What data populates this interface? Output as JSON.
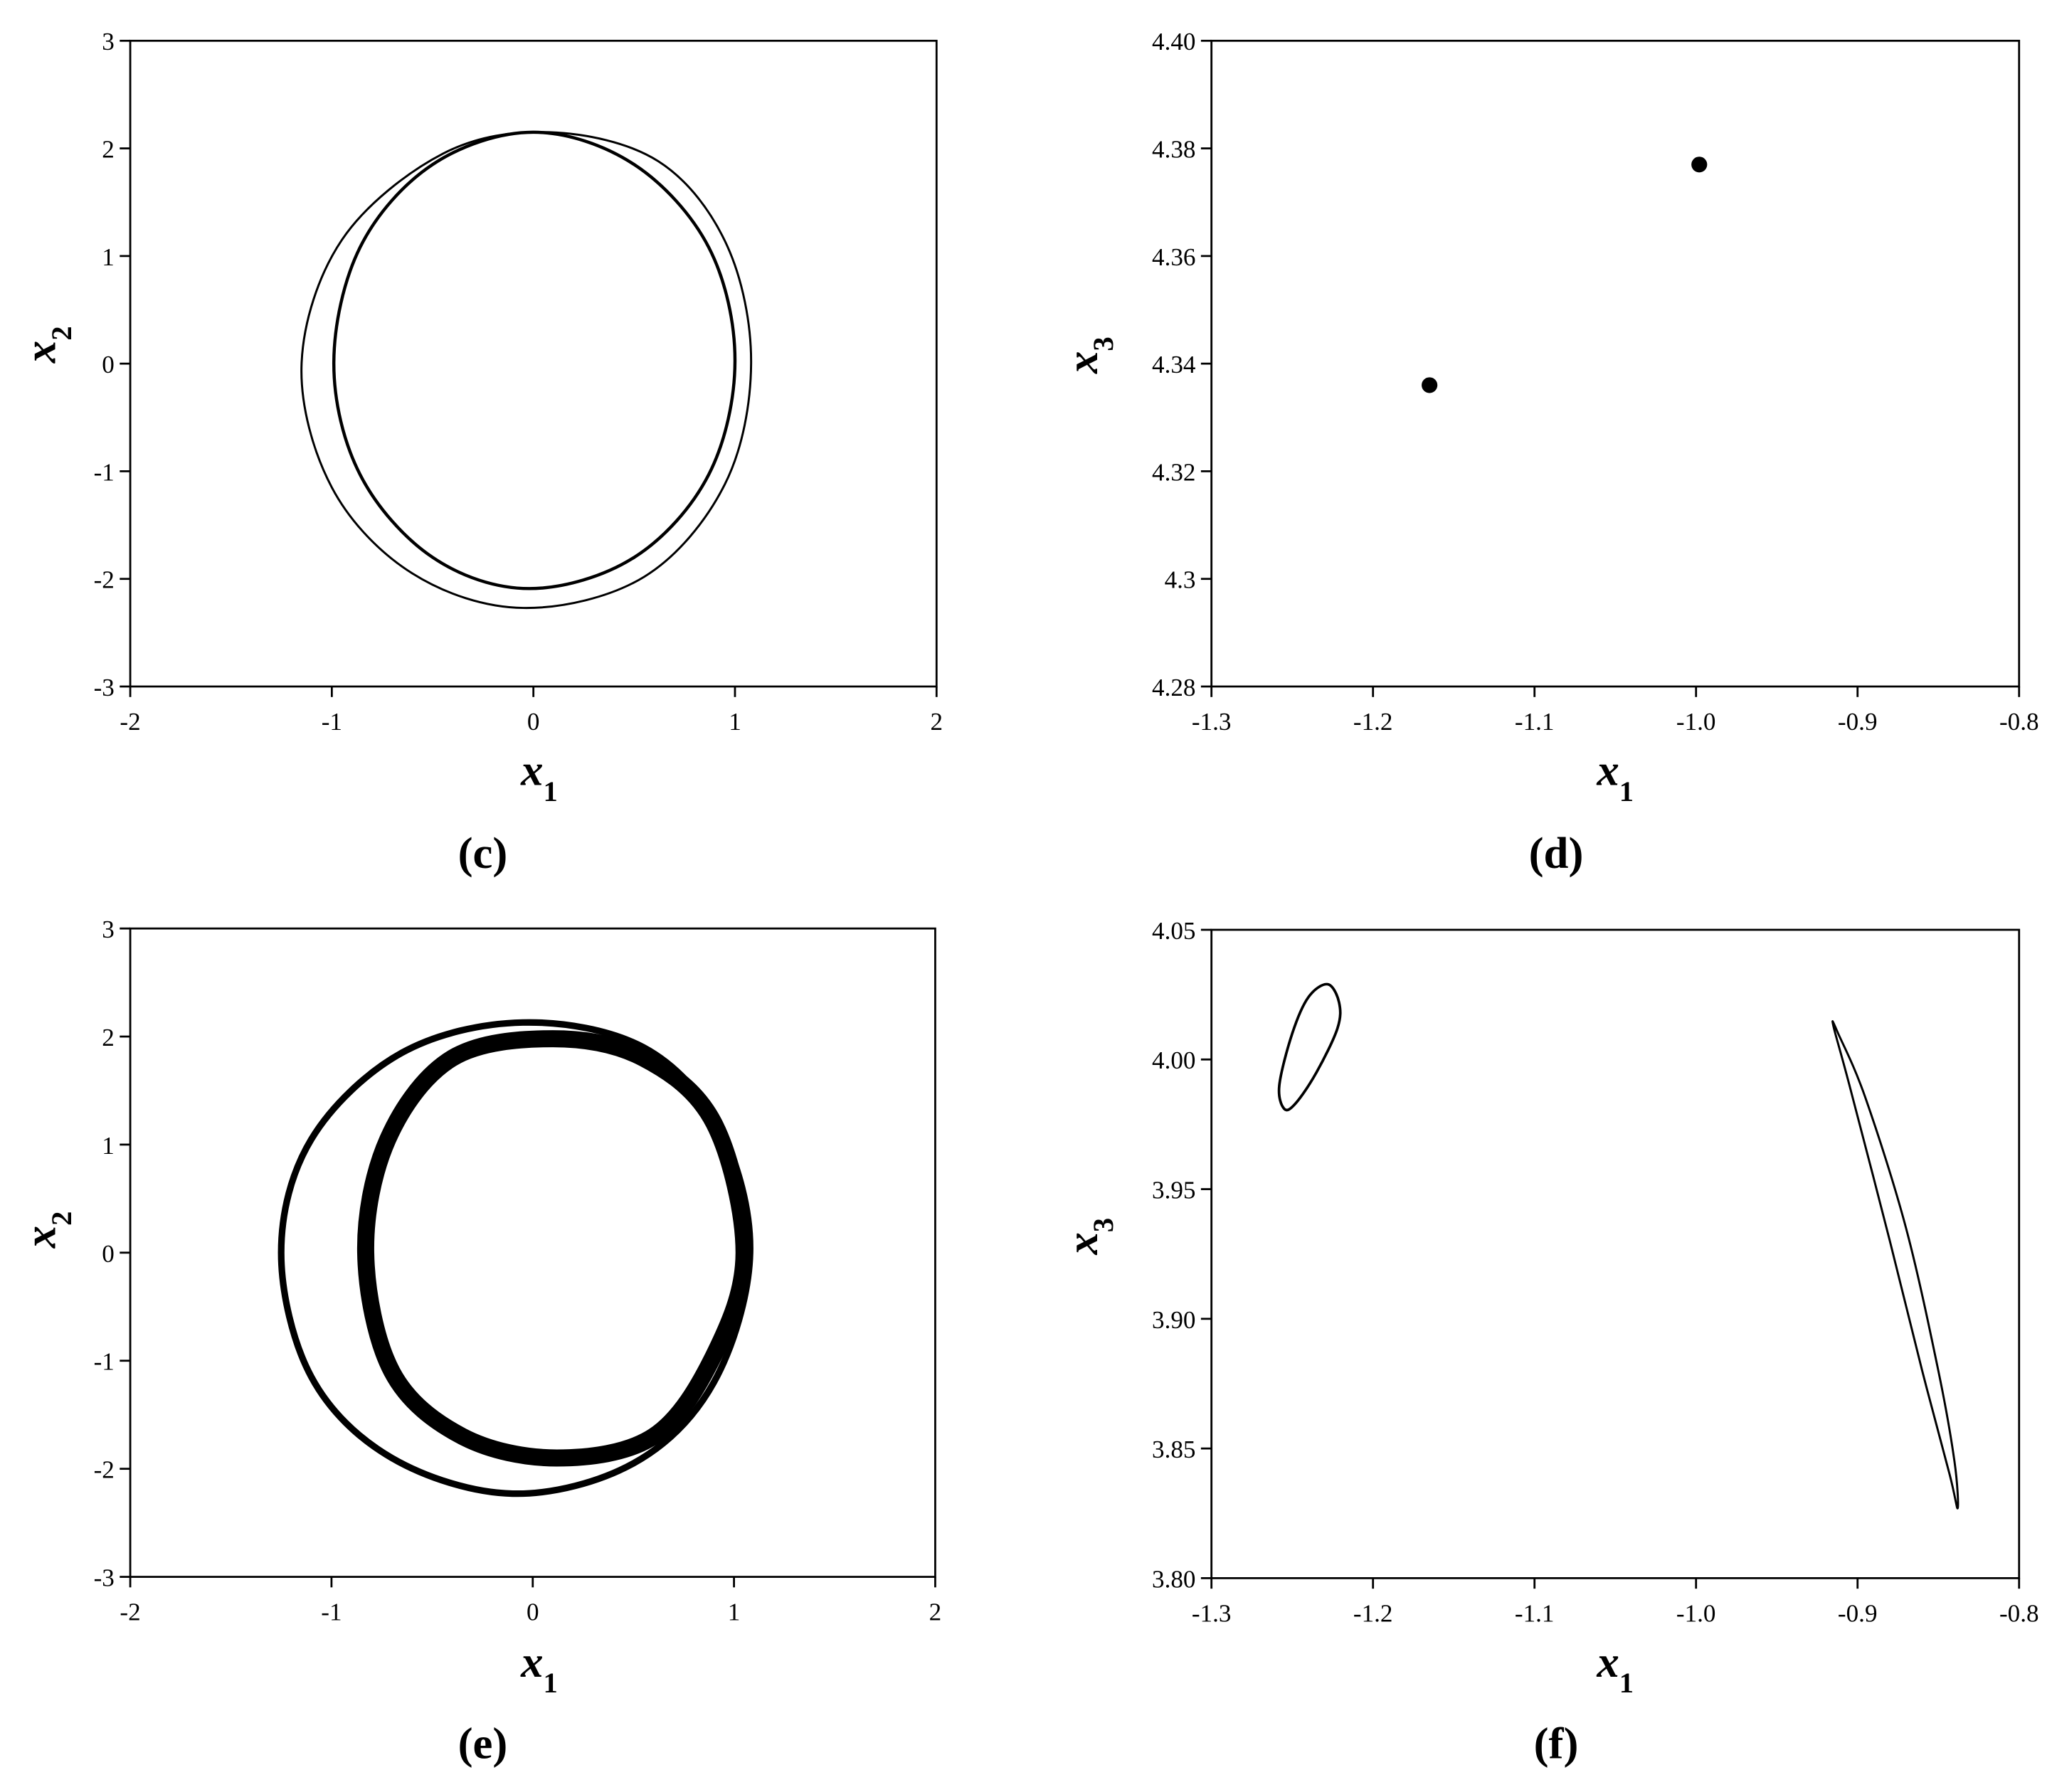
{
  "chart_data": [
    {
      "type": "line",
      "caption": "(c)",
      "xlabel": "x",
      "xlabel_subscript": "1",
      "ylabel": "x",
      "ylabel_subscript": "2",
      "xlim": [
        -2,
        2
      ],
      "xticks": [
        -2,
        -1,
        0,
        1,
        2
      ],
      "ylim": [
        -3,
        3
      ],
      "yticks": [
        -3,
        -2,
        -1,
        0,
        1,
        2,
        3
      ],
      "closed": true,
      "series": [
        {
          "color": "#000000",
          "line_width": 1.6,
          "x": [
            1.08,
            0.96,
            0.62,
            0.08,
            -0.45,
            -0.95,
            -1.15,
            -1.0,
            -0.6,
            -0.05,
            0.55,
            0.95
          ],
          "y": [
            0.0,
            1.1,
            1.88,
            2.15,
            1.95,
            1.15,
            0.0,
            -1.15,
            -1.95,
            -2.27,
            -1.98,
            -1.12
          ]
        },
        {
          "color": "#000000",
          "line_width": 2.4,
          "x": [
            1.0,
            0.87,
            0.5,
            0.0,
            -0.5,
            -0.86,
            -0.99,
            -0.86,
            -0.5,
            -0.02,
            0.5,
            0.87
          ],
          "y": [
            0.03,
            1.08,
            1.85,
            2.15,
            1.85,
            1.08,
            0.0,
            -1.03,
            -1.8,
            -2.09,
            -1.8,
            -1.03
          ]
        }
      ]
    },
    {
      "type": "scatter",
      "caption": "(d)",
      "xlabel": "x",
      "xlabel_subscript": "1",
      "ylabel": "x",
      "ylabel_subscript": "3",
      "xlim": [
        -1.3,
        -0.8
      ],
      "xticks": [
        -1.3,
        -1.2,
        -1.1,
        {
          "value": -1.0,
          "label": "-1.0"
        },
        -0.9,
        -0.8
      ],
      "ylim": [
        4.28,
        4.4
      ],
      "yticks": [
        4.28,
        4.3,
        4.32,
        4.34,
        4.36,
        4.38,
        {
          "value": 4.4,
          "label": "4.40"
        }
      ],
      "series": [
        {
          "color": "#000000",
          "x": [
            -1.165,
            -0.998
          ],
          "y": [
            4.336,
            4.377
          ]
        }
      ]
    },
    {
      "type": "line",
      "caption": "(e)",
      "xlabel": "x",
      "xlabel_subscript": "1",
      "ylabel": "x",
      "ylabel_subscript": "2",
      "xlim": [
        -2,
        2
      ],
      "xticks": [
        -2,
        -1,
        0,
        1,
        2
      ],
      "ylim": [
        -3,
        3
      ],
      "yticks": [
        -3,
        -2,
        -1,
        0,
        1,
        2,
        3
      ],
      "closed": true,
      "series": [
        {
          "color": "#000000",
          "line_width": 5,
          "x": [
            1.08,
            0.93,
            0.55,
            -0.05,
            -0.65,
            -1.1,
            -1.25,
            -1.1,
            -0.7,
            -0.1,
            0.5,
            0.9
          ],
          "y": [
            0.0,
            1.15,
            1.9,
            2.13,
            1.85,
            1.05,
            0.0,
            -1.15,
            -1.9,
            -2.23,
            -1.95,
            -1.2
          ]
        },
        {
          "color": "#000000",
          "line_width": 13,
          "x": [
            1.05,
            0.9,
            0.55,
            0.1,
            -0.4,
            -0.72,
            -0.83,
            -0.7,
            -0.35,
            0.12,
            0.6,
            0.9
          ],
          "y": [
            0.0,
            1.2,
            1.8,
            1.98,
            1.8,
            1.05,
            0.0,
            -1.1,
            -1.7,
            -1.9,
            -1.7,
            -0.95
          ]
        }
      ]
    },
    {
      "type": "line",
      "caption": "(f)",
      "xlabel": "x",
      "xlabel_subscript": "1",
      "ylabel": "x",
      "ylabel_subscript": "3",
      "xlim": [
        -1.3,
        -0.8
      ],
      "xticks": [
        -1.3,
        -1.2,
        -1.1,
        {
          "value": -1.0,
          "label": "-1.0"
        },
        -0.9,
        -0.8
      ],
      "ylim": [
        3.8,
        4.05
      ],
      "yticks": [
        {
          "value": 3.8,
          "label": "3.80"
        },
        3.85,
        {
          "value": 3.9,
          "label": "3.90"
        },
        3.95,
        {
          "value": 4.0,
          "label": "4.00"
        },
        4.05
      ],
      "closed": true,
      "series": [
        {
          "color": "#000000",
          "line_width": 2,
          "x": [
            -1.255,
            -1.258,
            -1.25,
            -1.24,
            -1.228,
            -1.221,
            -1.222,
            -1.235,
            -1.248
          ],
          "y": [
            3.981,
            3.99,
            4.01,
            4.024,
            4.029,
            4.022,
            4.012,
            3.995,
            3.983
          ]
        },
        {
          "color": "#000000",
          "line_width": 1.6,
          "x": [
            -0.915,
            -0.905,
            -0.88,
            -0.86,
            -0.843,
            -0.838,
            -0.84,
            -0.85,
            -0.87,
            -0.895,
            -0.912
          ],
          "y": [
            4.013,
            3.99,
            3.93,
            3.88,
            3.84,
            3.827,
            3.845,
            3.88,
            3.935,
            3.985,
            4.01
          ]
        }
      ]
    }
  ]
}
